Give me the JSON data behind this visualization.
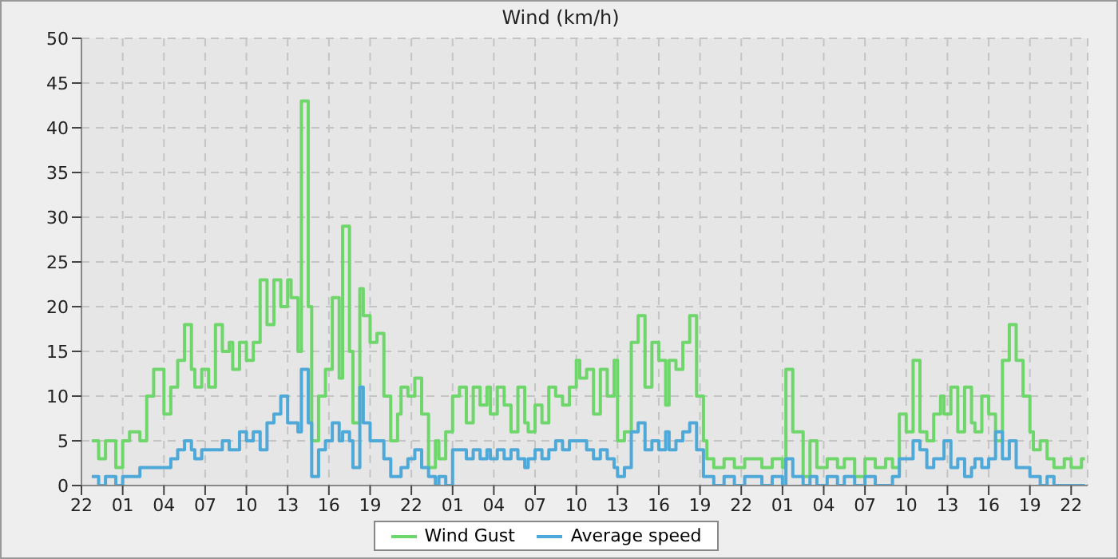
{
  "chart_data": {
    "type": "step",
    "title": "Wind (km/h)",
    "categories": [
      "22",
      null,
      null,
      null,
      null,
      null,
      null,
      null,
      null,
      null,
      null,
      null,
      "01",
      null,
      null,
      null,
      null,
      null,
      null,
      null,
      null,
      null,
      null,
      null,
      "04",
      null,
      null,
      null,
      null,
      null,
      null,
      null,
      null,
      null,
      null,
      null,
      "07",
      null,
      null,
      null,
      null,
      null,
      null,
      null,
      null,
      null,
      null,
      null,
      "10",
      null,
      null,
      null,
      null,
      null,
      null,
      null,
      null,
      null,
      null,
      null,
      "13",
      null,
      null,
      null,
      null,
      null,
      null,
      null,
      null,
      null,
      null,
      null,
      "16",
      null,
      null,
      null,
      null,
      null,
      null,
      null,
      null,
      null,
      null,
      null,
      "19",
      null,
      null,
      null,
      null,
      null,
      null,
      null,
      null,
      null,
      null,
      null,
      "22",
      null,
      null,
      null,
      null,
      null,
      null,
      null,
      null,
      null,
      null,
      null,
      "01",
      null,
      null,
      null,
      null,
      null,
      null,
      null,
      null,
      null,
      null,
      null,
      "04",
      null,
      null,
      null,
      null,
      null,
      null,
      null,
      null,
      null,
      null,
      null,
      "07",
      null,
      null,
      null,
      null,
      null,
      null,
      null,
      null,
      null,
      null,
      null,
      "10",
      null,
      null,
      null,
      null,
      null,
      null,
      null,
      null,
      null,
      null,
      null,
      "13",
      null,
      null,
      null,
      null,
      null,
      null,
      null,
      null,
      null,
      null,
      null,
      "16",
      null,
      null,
      null,
      null,
      null,
      null,
      null,
      null,
      null,
      null,
      null,
      "19",
      null,
      null,
      null,
      null,
      null,
      null,
      null,
      null,
      null,
      null,
      null,
      "22",
      null,
      null,
      null,
      null,
      null,
      null,
      null,
      null,
      null,
      null,
      null,
      "01",
      null,
      null,
      null,
      null,
      null,
      null,
      null,
      null,
      null,
      null,
      null,
      "04",
      null,
      null,
      null,
      null,
      null,
      null,
      null,
      null,
      null,
      null,
      null,
      "07",
      null,
      null,
      null,
      null,
      null,
      null,
      null,
      null,
      null,
      null,
      null,
      "10",
      null,
      null,
      null,
      null,
      null,
      null,
      null,
      null,
      null,
      null,
      null,
      "13",
      null,
      null,
      null,
      null,
      null,
      null,
      null,
      null,
      null,
      null,
      null,
      "16",
      null,
      null,
      null,
      null,
      null,
      null,
      null,
      null,
      null,
      null,
      null,
      "19",
      null,
      null,
      null,
      null,
      null,
      null,
      null,
      null,
      null,
      null,
      null,
      "22",
      null,
      null,
      null,
      null
    ],
    "ylim": [
      0,
      50
    ],
    "yticks": [
      0,
      5,
      10,
      15,
      20,
      25,
      30,
      35,
      40,
      45,
      50
    ],
    "grid": true,
    "legend": "bottom",
    "series": [
      {
        "name": "Wind Gust",
        "color": "#6fd66b",
        "values": [
          null,
          null,
          null,
          5,
          5,
          3,
          3,
          5,
          5,
          5,
          2,
          2,
          5,
          5,
          6,
          6,
          6,
          5,
          5,
          10,
          10,
          13,
          13,
          13,
          8,
          8,
          11,
          11,
          14,
          14,
          18,
          18,
          13,
          11,
          11,
          13,
          13,
          11,
          11,
          18,
          18,
          15,
          15,
          16,
          13,
          13,
          16,
          16,
          14,
          14,
          16,
          16,
          23,
          23,
          18,
          18,
          23,
          23,
          20,
          20,
          23,
          21,
          21,
          15,
          43,
          43,
          20,
          5,
          5,
          10,
          10,
          13,
          13,
          21,
          21,
          12,
          29,
          29,
          15,
          7,
          7,
          22,
          19,
          19,
          16,
          16,
          17,
          17,
          10,
          10,
          5,
          5,
          8,
          11,
          11,
          10,
          10,
          12,
          12,
          8,
          8,
          2,
          2,
          5,
          3,
          3,
          6,
          6,
          10,
          10,
          11,
          11,
          7,
          7,
          11,
          11,
          9,
          9,
          11,
          8,
          8,
          11,
          11,
          9,
          9,
          6,
          6,
          11,
          11,
          7,
          6,
          6,
          9,
          9,
          7,
          7,
          11,
          11,
          10,
          10,
          9,
          9,
          11,
          11,
          14,
          12,
          12,
          13,
          13,
          8,
          8,
          13,
          13,
          10,
          10,
          14,
          5,
          5,
          6,
          6,
          16,
          16,
          19,
          19,
          11,
          11,
          16,
          16,
          14,
          14,
          9,
          14,
          14,
          13,
          13,
          16,
          16,
          19,
          19,
          10,
          10,
          5,
          3,
          3,
          2,
          2,
          2,
          3,
          3,
          3,
          2,
          2,
          2,
          3,
          3,
          3,
          3,
          3,
          2,
          2,
          2,
          3,
          3,
          3,
          2,
          13,
          13,
          6,
          6,
          6,
          1,
          1,
          5,
          5,
          2,
          2,
          2,
          3,
          3,
          3,
          2,
          2,
          3,
          3,
          3,
          1,
          1,
          1,
          3,
          3,
          3,
          2,
          2,
          2,
          3,
          3,
          2,
          2,
          8,
          8,
          6,
          6,
          14,
          14,
          6,
          6,
          5,
          5,
          8,
          8,
          10,
          8,
          8,
          11,
          11,
          6,
          6,
          11,
          11,
          7,
          6,
          6,
          10,
          10,
          8,
          8,
          5,
          5,
          14,
          14,
          18,
          18,
          14,
          14,
          10,
          10,
          6,
          4,
          4,
          5,
          5,
          3,
          3,
          2,
          2,
          2,
          3,
          3,
          2,
          2,
          2,
          3,
          3
        ]
      },
      {
        "name": "Average speed",
        "color": "#4ea8d8",
        "values": [
          null,
          null,
          null,
          1,
          1,
          0,
          0,
          1,
          1,
          1,
          0,
          0,
          1,
          1,
          1,
          1,
          1,
          2,
          2,
          2,
          2,
          2,
          2,
          2,
          2,
          2,
          3,
          3,
          4,
          4,
          5,
          5,
          4,
          3,
          3,
          4,
          4,
          4,
          4,
          4,
          4,
          5,
          5,
          4,
          4,
          4,
          6,
          6,
          5,
          5,
          6,
          6,
          4,
          4,
          7,
          7,
          8,
          8,
          10,
          10,
          7,
          7,
          7,
          6,
          13,
          13,
          7,
          1,
          1,
          4,
          4,
          5,
          5,
          7,
          7,
          5,
          6,
          6,
          5,
          2,
          2,
          11,
          7,
          7,
          5,
          5,
          5,
          5,
          3,
          3,
          1,
          1,
          1,
          2,
          2,
          3,
          3,
          4,
          4,
          2,
          2,
          1,
          1,
          0,
          1,
          1,
          0,
          0,
          4,
          4,
          4,
          4,
          3,
          3,
          4,
          4,
          3,
          3,
          4,
          3,
          3,
          4,
          4,
          3,
          3,
          4,
          4,
          3,
          3,
          2,
          3,
          3,
          4,
          4,
          3,
          3,
          4,
          4,
          5,
          5,
          4,
          4,
          5,
          5,
          5,
          5,
          5,
          4,
          4,
          3,
          3,
          4,
          4,
          3,
          3,
          2,
          1,
          1,
          2,
          2,
          6,
          6,
          7,
          7,
          4,
          4,
          5,
          5,
          4,
          4,
          6,
          4,
          4,
          5,
          5,
          6,
          6,
          7,
          7,
          4,
          4,
          1,
          1,
          1,
          0,
          0,
          0,
          1,
          1,
          1,
          0,
          0,
          0,
          1,
          1,
          1,
          1,
          1,
          0,
          0,
          0,
          1,
          1,
          1,
          0,
          3,
          3,
          1,
          1,
          1,
          0,
          0,
          1,
          1,
          0,
          0,
          0,
          1,
          1,
          1,
          0,
          0,
          1,
          1,
          1,
          0,
          0,
          0,
          1,
          1,
          1,
          0,
          0,
          0,
          0,
          0,
          1,
          1,
          3,
          3,
          3,
          3,
          5,
          5,
          4,
          4,
          2,
          2,
          3,
          3,
          3,
          5,
          5,
          2,
          2,
          3,
          3,
          1,
          1,
          2,
          3,
          3,
          2,
          2,
          3,
          3,
          6,
          6,
          3,
          3,
          5,
          5,
          2,
          2,
          2,
          2,
          1,
          1,
          1,
          0,
          0,
          1,
          1,
          0,
          0,
          0,
          0,
          0,
          0,
          0,
          0,
          0,
          0
        ]
      }
    ]
  }
}
